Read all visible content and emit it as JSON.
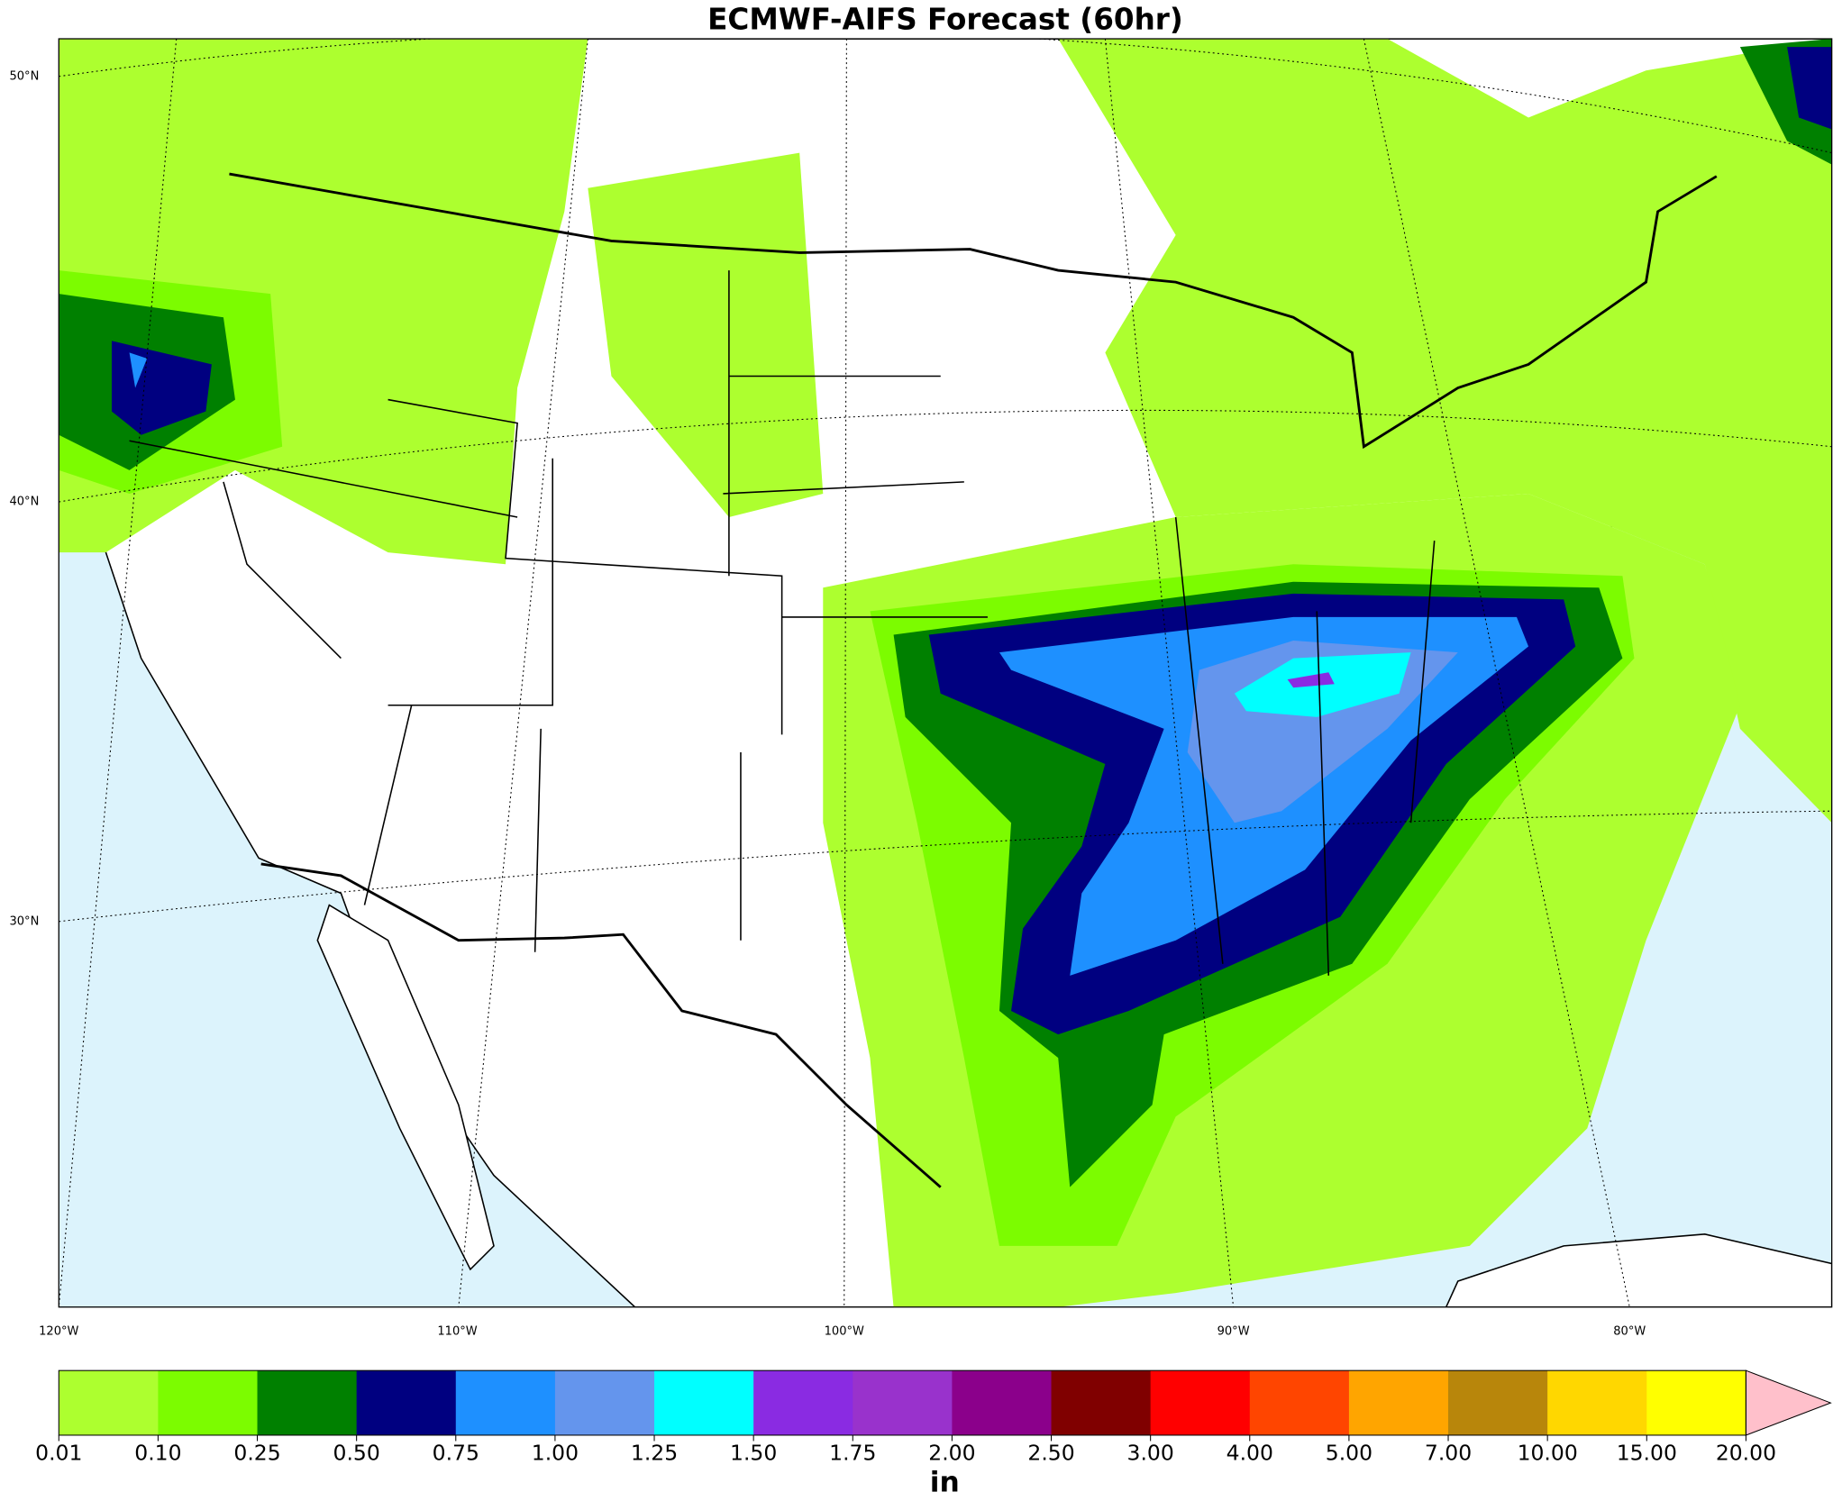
{
  "map": {
    "title": "ECMWF-AIFS Forecast (60hr)",
    "lat_labels": [
      "50°N",
      "40°N",
      "30°N"
    ],
    "lon_labels": [
      "120°W",
      "110°W",
      "100°W",
      "90°W",
      "80°W"
    ]
  },
  "colorbar": {
    "unit": "in",
    "colors": [
      "#adff2f",
      "#7cfc00",
      "#008000",
      "#000080",
      "#1e90ff",
      "#6495ed",
      "#00ffff",
      "#8a2be2",
      "#9932cc",
      "#8b008b",
      "#800000",
      "#ff0000",
      "#ff4500",
      "#ffa500",
      "#b8860b",
      "#ffd700",
      "#ffff00"
    ],
    "extend_color": "#ffc0cb",
    "ticks": [
      0.01,
      {
        "value": 0.1,
        "label": "0.10"
      },
      0.25,
      {
        "value": 0.5,
        "label": "0.50"
      },
      0.75,
      {
        "value": 1,
        "label": "1.00"
      },
      1.25,
      {
        "value": 1.5,
        "label": "1.50"
      },
      1.75,
      {
        "value": 2,
        "label": "2.00"
      },
      {
        "value": 2.5,
        "label": "2.50"
      },
      {
        "value": 3,
        "label": "3.00"
      },
      {
        "value": 4,
        "label": "4.00"
      },
      {
        "value": 5,
        "label": "5.00"
      },
      {
        "value": 7,
        "label": "7.00"
      },
      {
        "value": 10,
        "label": "10.00"
      },
      {
        "value": 15,
        "label": "15.00"
      },
      {
        "value": 20,
        "label": "20.00"
      }
    ]
  }
}
